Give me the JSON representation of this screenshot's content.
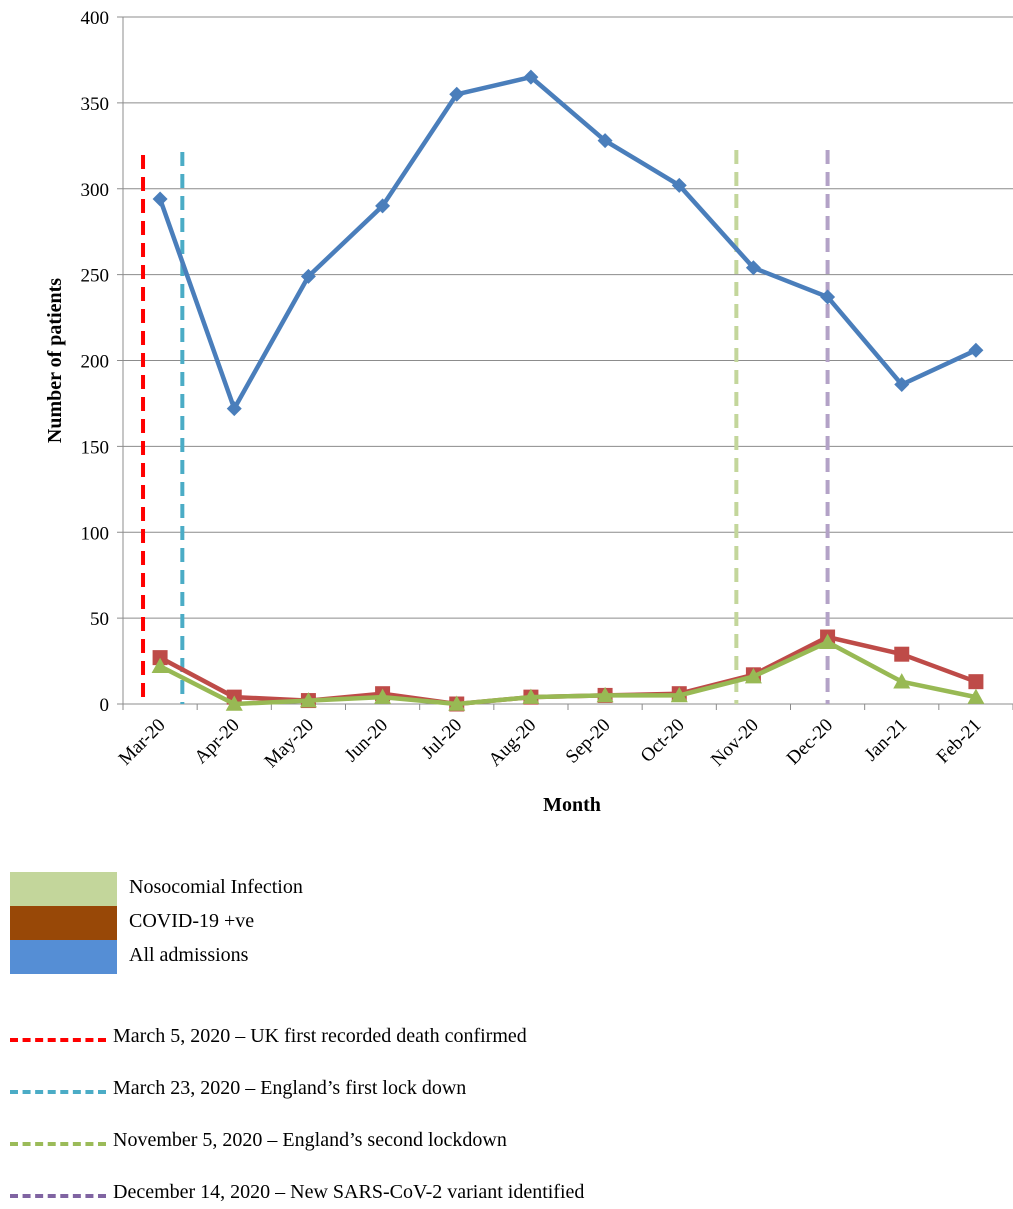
{
  "chart_data": {
    "type": "line",
    "title": "",
    "xlabel": "Month",
    "ylabel": "Number of patients",
    "ylim": [
      0,
      400
    ],
    "yticks": [
      0,
      50,
      100,
      150,
      200,
      250,
      300,
      350,
      400
    ],
    "grid": true,
    "categories": [
      "Mar-20",
      "Apr-20",
      "May-20",
      "Jun-20",
      "Jul-20",
      "Aug-20",
      "Sep-20",
      "Oct-20",
      "Nov-20",
      "Dec-20",
      "Jan-21",
      "Feb-21"
    ],
    "series": [
      {
        "name": "All admissions",
        "color": "#4a7ebb",
        "marker": "diamond",
        "values": [
          294,
          172,
          249,
          290,
          355,
          365,
          328,
          302,
          254,
          237,
          186,
          206
        ]
      },
      {
        "name": "COVID-19 +ve",
        "color": "#be4b48",
        "marker": "square",
        "values": [
          27,
          4,
          2,
          6,
          0,
          4,
          5,
          6,
          17,
          39,
          29,
          13
        ]
      },
      {
        "name": "Nosocomial Infection",
        "color": "#98b954",
        "marker": "triangle",
        "values": [
          22,
          0,
          2,
          4,
          0,
          4,
          5,
          5,
          16,
          36,
          13,
          4
        ]
      }
    ],
    "event_lines": [
      {
        "label": "March 5, 2020 – UK first recorded death confirmed",
        "color": "#ff0000",
        "x_month_index": -0.23
      },
      {
        "label": "March 23, 2020 – England’s first lock down",
        "color": "#4bacc6",
        "x_month_index": 0.3
      },
      {
        "label": "November 5, 2020 – England’s second lockdown",
        "color": "#c3d69b",
        "x_month_index": 7.77
      },
      {
        "label": "December 14, 2020 – New SARS-CoV-2 variant identified",
        "color": "#b3a2c7",
        "x_month_index": 9.0
      }
    ]
  },
  "legend": {
    "items": [
      {
        "label": "Nosocomial Infection",
        "color": "#c3d69b"
      },
      {
        "label": "COVID-19 +ve",
        "color": "#984807"
      },
      {
        "label": "All admissions",
        "color": "#558ed5"
      }
    ]
  },
  "events_legend": {
    "items": [
      {
        "label": "March 5, 2020 – UK first recorded death confirmed",
        "color": "#ff0000"
      },
      {
        "label": "March 23, 2020 – England’s first lock down",
        "color": "#4bacc6"
      },
      {
        "label": "November 5, 2020 – England’s second lockdown",
        "color": "#9bbb59"
      },
      {
        "label": "December 14, 2020 – New SARS-CoV-2 variant identified",
        "color": "#8064a2"
      }
    ]
  }
}
